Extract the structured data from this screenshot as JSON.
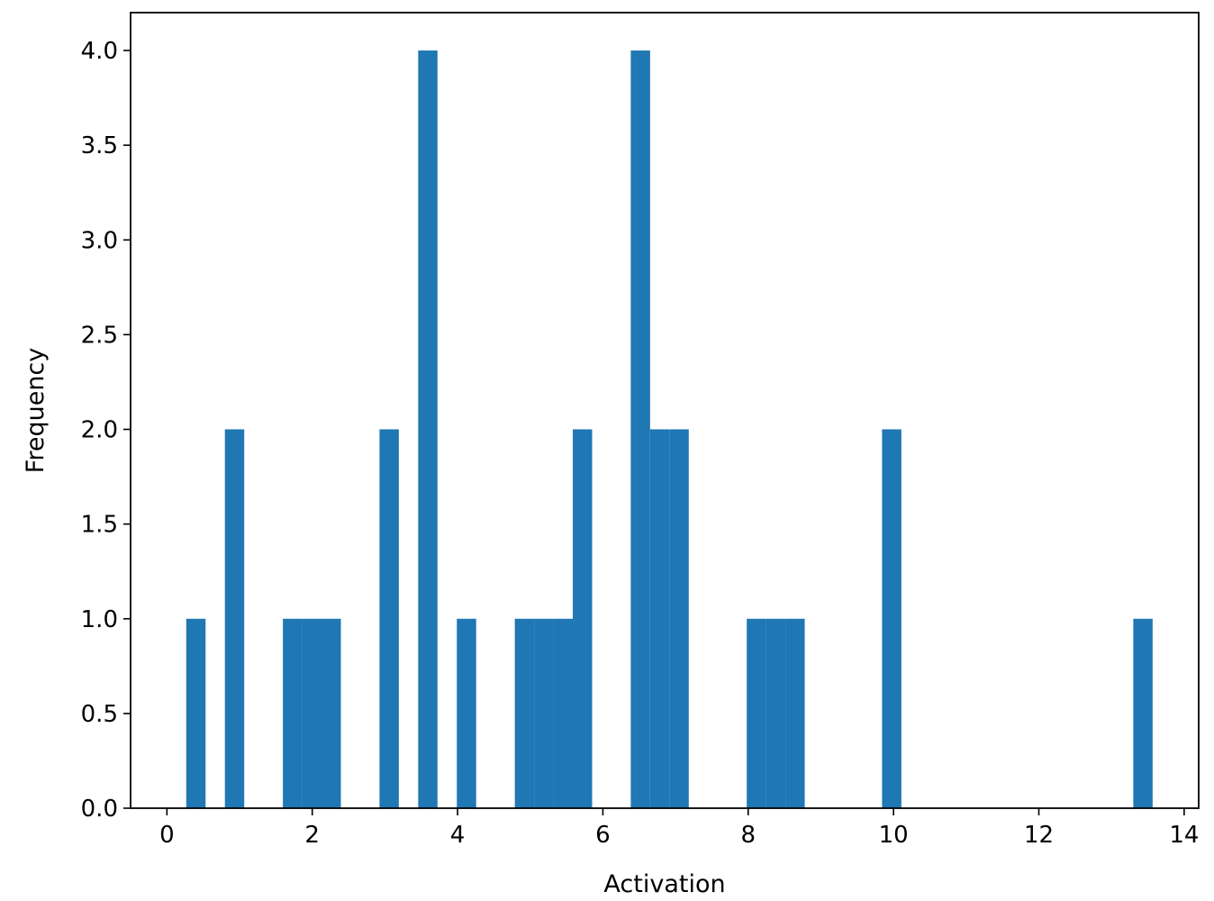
{
  "chart_data": {
    "type": "bar",
    "title": "",
    "xlabel": "Activation",
    "ylabel": "Frequency",
    "xlim": [
      -0.5,
      14.2
    ],
    "ylim": [
      0,
      4.2
    ],
    "grid": false,
    "bar_color": "#1f77b4",
    "bin_width": 0.266,
    "bins": [
      {
        "x0": 0.266,
        "count": 1
      },
      {
        "x0": 0.798,
        "count": 2
      },
      {
        "x0": 1.596,
        "count": 1
      },
      {
        "x0": 1.862,
        "count": 1
      },
      {
        "x0": 2.128,
        "count": 1
      },
      {
        "x0": 2.926,
        "count": 2
      },
      {
        "x0": 3.458,
        "count": 4
      },
      {
        "x0": 3.99,
        "count": 1
      },
      {
        "x0": 4.788,
        "count": 1
      },
      {
        "x0": 5.054,
        "count": 1
      },
      {
        "x0": 5.32,
        "count": 1
      },
      {
        "x0": 5.586,
        "count": 2
      },
      {
        "x0": 6.384,
        "count": 4
      },
      {
        "x0": 6.65,
        "count": 2
      },
      {
        "x0": 6.916,
        "count": 2
      },
      {
        "x0": 7.98,
        "count": 1
      },
      {
        "x0": 8.246,
        "count": 1
      },
      {
        "x0": 8.512,
        "count": 1
      },
      {
        "x0": 9.842,
        "count": 2
      },
      {
        "x0": 13.3,
        "count": 1
      }
    ],
    "xticks": [
      0,
      2,
      4,
      6,
      8,
      10,
      12,
      14
    ],
    "xtick_labels": [
      "0",
      "2",
      "4",
      "6",
      "8",
      "10",
      "12",
      "14"
    ],
    "yticks": [
      0,
      0.5,
      1.0,
      1.5,
      2.0,
      2.5,
      3.0,
      3.5,
      4.0
    ],
    "ytick_labels": [
      "0.0",
      "0.5",
      "1.0",
      "1.5",
      "2.0",
      "2.5",
      "3.0",
      "3.5",
      "4.0"
    ]
  }
}
